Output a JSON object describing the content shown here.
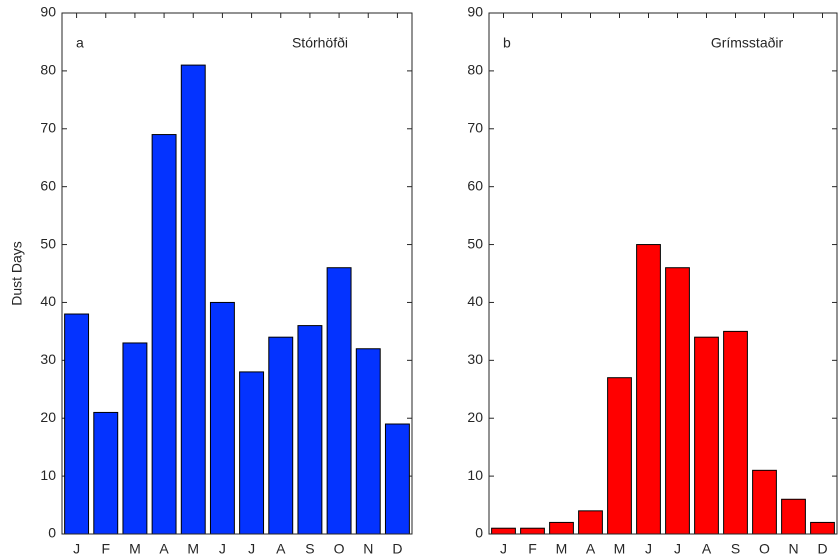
{
  "chart_data": [
    {
      "type": "bar",
      "panel_label": "a",
      "title": "Stórhöfði",
      "ylabel": "Dust Days",
      "categories": [
        "J",
        "F",
        "M",
        "A",
        "M",
        "J",
        "J",
        "A",
        "S",
        "O",
        "N",
        "D"
      ],
      "values": [
        38,
        21,
        33,
        69,
        81,
        40,
        28,
        34,
        36,
        46,
        32,
        19
      ],
      "color": "#0433ff",
      "ylim": [
        0,
        90
      ],
      "yticks": [
        0,
        10,
        20,
        30,
        40,
        50,
        60,
        70,
        80,
        90
      ]
    },
    {
      "type": "bar",
      "panel_label": "b",
      "title": "Grímsstaðir",
      "categories": [
        "J",
        "F",
        "M",
        "A",
        "M",
        "J",
        "J",
        "A",
        "S",
        "O",
        "N",
        "D"
      ],
      "values": [
        1,
        1,
        2,
        4,
        27,
        50,
        46,
        34,
        35,
        11,
        6,
        2
      ],
      "color": "#ff0000",
      "ylim": [
        0,
        90
      ],
      "yticks": [
        0,
        10,
        20,
        30,
        40,
        50,
        60,
        70,
        80,
        90
      ]
    }
  ]
}
